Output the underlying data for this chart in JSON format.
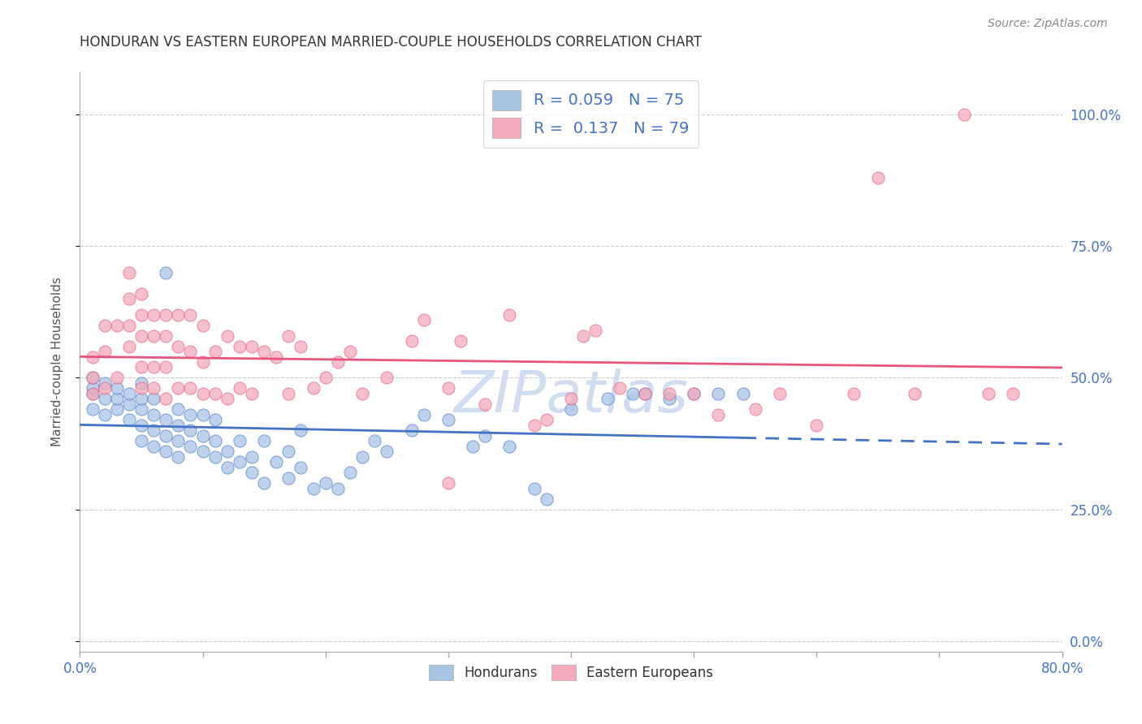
{
  "title": "HONDURAN VS EASTERN EUROPEAN MARRIED-COUPLE HOUSEHOLDS CORRELATION CHART",
  "source": "Source: ZipAtlas.com",
  "ylabel": "Married-couple Households",
  "ytick_labels": [
    "0.0%",
    "25.0%",
    "50.0%",
    "75.0%",
    "100.0%"
  ],
  "ytick_values": [
    0.0,
    0.25,
    0.5,
    0.75,
    1.0
  ],
  "xlim": [
    0.0,
    0.8
  ],
  "ylim": [
    -0.02,
    1.08
  ],
  "hondurans_R": 0.059,
  "hondurans_N": 75,
  "eastern_europeans_R": 0.137,
  "eastern_europeans_N": 79,
  "hondurans_color": "#A8C4E5",
  "hondurans_line_color": "#4472C4",
  "eastern_europeans_color": "#F4AABB",
  "eastern_europeans_line_color": "#E8557A",
  "watermark_color": "#D0DCF0",
  "background_color": "#FFFFFF",
  "hondurans_x": [
    0.01,
    0.01,
    0.01,
    0.01,
    0.02,
    0.02,
    0.02,
    0.03,
    0.03,
    0.03,
    0.04,
    0.04,
    0.04,
    0.05,
    0.05,
    0.05,
    0.05,
    0.05,
    0.06,
    0.06,
    0.06,
    0.06,
    0.07,
    0.07,
    0.07,
    0.07,
    0.08,
    0.08,
    0.08,
    0.08,
    0.09,
    0.09,
    0.09,
    0.1,
    0.1,
    0.1,
    0.11,
    0.11,
    0.11,
    0.12,
    0.12,
    0.13,
    0.13,
    0.14,
    0.14,
    0.15,
    0.15,
    0.16,
    0.17,
    0.17,
    0.18,
    0.18,
    0.19,
    0.2,
    0.21,
    0.22,
    0.23,
    0.24,
    0.25,
    0.27,
    0.28,
    0.3,
    0.32,
    0.33,
    0.35,
    0.37,
    0.38,
    0.4,
    0.43,
    0.45,
    0.46,
    0.48,
    0.5,
    0.52,
    0.54
  ],
  "hondurans_y": [
    0.44,
    0.47,
    0.48,
    0.5,
    0.43,
    0.46,
    0.49,
    0.44,
    0.46,
    0.48,
    0.42,
    0.45,
    0.47,
    0.38,
    0.41,
    0.44,
    0.46,
    0.49,
    0.37,
    0.4,
    0.43,
    0.46,
    0.36,
    0.39,
    0.42,
    0.7,
    0.35,
    0.38,
    0.41,
    0.44,
    0.37,
    0.4,
    0.43,
    0.36,
    0.39,
    0.43,
    0.35,
    0.38,
    0.42,
    0.33,
    0.36,
    0.34,
    0.38,
    0.32,
    0.35,
    0.3,
    0.38,
    0.34,
    0.31,
    0.36,
    0.33,
    0.4,
    0.29,
    0.3,
    0.29,
    0.32,
    0.35,
    0.38,
    0.36,
    0.4,
    0.43,
    0.42,
    0.37,
    0.39,
    0.37,
    0.29,
    0.27,
    0.44,
    0.46,
    0.47,
    0.47,
    0.46,
    0.47,
    0.47,
    0.47
  ],
  "eastern_europeans_x": [
    0.01,
    0.01,
    0.01,
    0.02,
    0.02,
    0.02,
    0.03,
    0.03,
    0.04,
    0.04,
    0.04,
    0.04,
    0.05,
    0.05,
    0.05,
    0.05,
    0.05,
    0.06,
    0.06,
    0.06,
    0.06,
    0.07,
    0.07,
    0.07,
    0.07,
    0.08,
    0.08,
    0.08,
    0.09,
    0.09,
    0.09,
    0.1,
    0.1,
    0.1,
    0.11,
    0.11,
    0.12,
    0.12,
    0.13,
    0.13,
    0.14,
    0.14,
    0.15,
    0.16,
    0.17,
    0.17,
    0.18,
    0.19,
    0.2,
    0.21,
    0.22,
    0.23,
    0.25,
    0.27,
    0.28,
    0.3,
    0.3,
    0.31,
    0.33,
    0.35,
    0.37,
    0.38,
    0.4,
    0.41,
    0.42,
    0.44,
    0.46,
    0.48,
    0.5,
    0.52,
    0.55,
    0.57,
    0.6,
    0.63,
    0.65,
    0.68,
    0.72,
    0.74,
    0.76
  ],
  "eastern_europeans_y": [
    0.47,
    0.5,
    0.54,
    0.48,
    0.55,
    0.6,
    0.5,
    0.6,
    0.56,
    0.6,
    0.65,
    0.7,
    0.48,
    0.52,
    0.58,
    0.62,
    0.66,
    0.48,
    0.52,
    0.58,
    0.62,
    0.46,
    0.52,
    0.58,
    0.62,
    0.48,
    0.56,
    0.62,
    0.48,
    0.55,
    0.62,
    0.47,
    0.53,
    0.6,
    0.47,
    0.55,
    0.46,
    0.58,
    0.48,
    0.56,
    0.47,
    0.56,
    0.55,
    0.54,
    0.47,
    0.58,
    0.56,
    0.48,
    0.5,
    0.53,
    0.55,
    0.47,
    0.5,
    0.57,
    0.61,
    0.48,
    0.3,
    0.57,
    0.45,
    0.62,
    0.41,
    0.42,
    0.46,
    0.58,
    0.59,
    0.48,
    0.47,
    0.47,
    0.47,
    0.43,
    0.44,
    0.47,
    0.41,
    0.47,
    0.88,
    0.47,
    1.0,
    0.47,
    0.47
  ]
}
